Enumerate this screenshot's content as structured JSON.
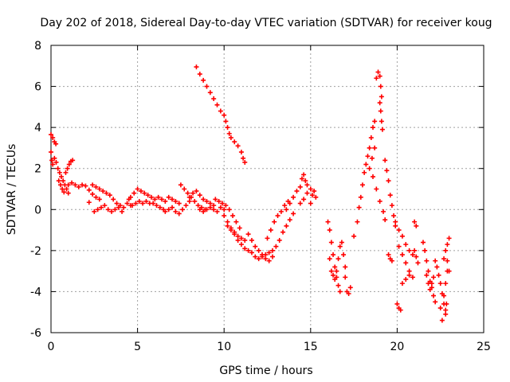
{
  "chart_data": {
    "type": "scatter",
    "title": "Day 202 of 2018, Sidereal Day-to-day VTEC variation (SDTVAR) for receiver koug",
    "xlabel": "GPS time / hours",
    "ylabel": "SDTVAR / TECUs",
    "xlim": [
      0,
      25
    ],
    "ylim": [
      -6,
      8
    ],
    "x_ticks": [
      0,
      5,
      10,
      15,
      20,
      25
    ],
    "y_ticks": [
      -6,
      -4,
      -2,
      0,
      2,
      4,
      6,
      8
    ],
    "grid": true,
    "marker": "+",
    "marker_color": "#ff0000",
    "series": [
      {
        "points": [
          [
            0.0,
            3.65
          ],
          [
            0.1,
            3.5
          ],
          [
            0.2,
            3.3
          ],
          [
            0.28,
            3.2
          ],
          [
            0.0,
            2.8
          ],
          [
            0.05,
            2.4
          ],
          [
            0.1,
            2.2
          ],
          [
            0.2,
            2.5
          ],
          [
            0.3,
            2.3
          ],
          [
            0.4,
            2.0
          ],
          [
            0.5,
            1.8
          ],
          [
            0.6,
            1.6
          ],
          [
            0.7,
            1.4
          ],
          [
            0.8,
            1.2
          ],
          [
            0.9,
            1.0
          ],
          [
            1.0,
            0.8
          ],
          [
            0.45,
            1.4
          ],
          [
            0.55,
            1.2
          ],
          [
            0.65,
            1.0
          ],
          [
            0.75,
            0.85
          ],
          [
            0.85,
            1.8
          ],
          [
            0.95,
            2.0
          ],
          [
            1.05,
            2.2
          ],
          [
            1.15,
            2.35
          ],
          [
            1.25,
            2.4
          ],
          [
            1.0,
            1.2
          ],
          [
            1.2,
            1.3
          ],
          [
            1.4,
            1.2
          ],
          [
            1.6,
            1.1
          ],
          [
            1.8,
            1.2
          ],
          [
            2.0,
            1.15
          ],
          [
            2.2,
            0.95
          ],
          [
            2.4,
            0.75
          ],
          [
            2.6,
            0.6
          ],
          [
            2.8,
            0.5
          ],
          [
            2.2,
            0.35
          ],
          [
            2.4,
            1.2
          ],
          [
            2.6,
            1.1
          ],
          [
            2.8,
            1.0
          ],
          [
            3.0,
            0.9
          ],
          [
            2.5,
            -0.1
          ],
          [
            2.7,
            0.0
          ],
          [
            2.9,
            0.1
          ],
          [
            3.1,
            0.2
          ],
          [
            3.3,
            0.0
          ],
          [
            3.5,
            -0.1
          ],
          [
            3.7,
            0.0
          ],
          [
            3.9,
            0.1
          ],
          [
            4.1,
            -0.1
          ],
          [
            3.2,
            0.8
          ],
          [
            3.4,
            0.7
          ],
          [
            3.6,
            0.5
          ],
          [
            3.8,
            0.3
          ],
          [
            4.0,
            0.2
          ],
          [
            4.2,
            0.1
          ],
          [
            4.4,
            0.3
          ],
          [
            4.5,
            0.5
          ],
          [
            4.6,
            0.2
          ],
          [
            4.6,
            0.6
          ],
          [
            4.8,
            0.8
          ],
          [
            5.0,
            1.0
          ],
          [
            5.2,
            0.9
          ],
          [
            5.4,
            0.8
          ],
          [
            5.6,
            0.7
          ],
          [
            5.8,
            0.6
          ],
          [
            6.0,
            0.5
          ],
          [
            4.7,
            0.2
          ],
          [
            4.9,
            0.3
          ],
          [
            5.1,
            0.4
          ],
          [
            5.3,
            0.3
          ],
          [
            5.5,
            0.4
          ],
          [
            5.7,
            0.3
          ],
          [
            5.9,
            0.3
          ],
          [
            6.1,
            0.2
          ],
          [
            6.3,
            0.1
          ],
          [
            6.5,
            0.0
          ],
          [
            6.2,
            0.6
          ],
          [
            6.4,
            0.5
          ],
          [
            6.6,
            0.4
          ],
          [
            6.8,
            0.6
          ],
          [
            7.0,
            0.5
          ],
          [
            7.2,
            0.4
          ],
          [
            7.4,
            0.3
          ],
          [
            6.6,
            -0.1
          ],
          [
            6.8,
            0.0
          ],
          [
            7.0,
            0.1
          ],
          [
            7.2,
            -0.1
          ],
          [
            7.4,
            -0.2
          ],
          [
            7.6,
            0.0
          ],
          [
            7.8,
            0.2
          ],
          [
            8.0,
            0.4
          ],
          [
            7.5,
            1.2
          ],
          [
            7.7,
            1.0
          ],
          [
            7.9,
            0.8
          ],
          [
            8.1,
            0.6
          ],
          [
            8.3,
            0.4
          ],
          [
            8.5,
            0.2
          ],
          [
            8.7,
            0.1
          ],
          [
            8.9,
            0.0
          ],
          [
            8.0,
            0.6
          ],
          [
            8.2,
            0.8
          ],
          [
            8.4,
            0.9
          ],
          [
            8.6,
            0.7
          ],
          [
            8.8,
            0.5
          ],
          [
            9.0,
            0.4
          ],
          [
            9.2,
            0.3
          ],
          [
            9.4,
            0.2
          ],
          [
            8.6,
            0.0
          ],
          [
            8.8,
            -0.1
          ],
          [
            9.0,
            0.0
          ],
          [
            9.2,
            0.1
          ],
          [
            9.4,
            0.0
          ],
          [
            9.6,
            -0.1
          ],
          [
            9.8,
            0.1
          ],
          [
            10.0,
            0.0
          ],
          [
            9.5,
            0.5
          ],
          [
            9.7,
            0.4
          ],
          [
            9.9,
            0.3
          ],
          [
            10.1,
            0.2
          ],
          [
            10.3,
            0.0
          ],
          [
            10.5,
            -0.3
          ],
          [
            10.7,
            -0.6
          ],
          [
            10.9,
            -0.9
          ],
          [
            10.0,
            -0.3
          ],
          [
            10.2,
            -0.6
          ],
          [
            10.4,
            -0.9
          ],
          [
            10.6,
            -1.1
          ],
          [
            10.8,
            -1.3
          ],
          [
            11.0,
            -1.4
          ],
          [
            11.2,
            -1.5
          ],
          [
            10.2,
            -0.8
          ],
          [
            10.4,
            -1.0
          ],
          [
            10.6,
            -1.2
          ],
          [
            10.8,
            -1.5
          ],
          [
            11.0,
            -1.7
          ],
          [
            11.2,
            -1.9
          ],
          [
            11.4,
            -2.0
          ],
          [
            11.4,
            -1.2
          ],
          [
            11.6,
            -1.5
          ],
          [
            11.8,
            -1.8
          ],
          [
            12.0,
            -2.0
          ],
          [
            12.2,
            -2.2
          ],
          [
            12.4,
            -2.4
          ],
          [
            12.6,
            -2.5
          ],
          [
            11.6,
            -2.1
          ],
          [
            11.8,
            -2.3
          ],
          [
            12.0,
            -2.4
          ],
          [
            12.2,
            -2.3
          ],
          [
            12.4,
            -2.2
          ],
          [
            12.6,
            -2.1
          ],
          [
            12.8,
            -2.3
          ],
          [
            12.5,
            -1.4
          ],
          [
            12.7,
            -1.0
          ],
          [
            12.9,
            -0.6
          ],
          [
            13.1,
            -0.3
          ],
          [
            13.3,
            -0.1
          ],
          [
            13.5,
            0.2
          ],
          [
            13.7,
            0.4
          ],
          [
            12.8,
            -2.0
          ],
          [
            13.0,
            -1.8
          ],
          [
            13.2,
            -1.5
          ],
          [
            13.4,
            -1.1
          ],
          [
            13.6,
            -0.8
          ],
          [
            13.8,
            -0.5
          ],
          [
            14.0,
            -0.2
          ],
          [
            13.6,
            0.0
          ],
          [
            13.8,
            0.3
          ],
          [
            14.0,
            0.6
          ],
          [
            14.2,
            0.9
          ],
          [
            14.4,
            1.1
          ],
          [
            14.5,
            1.5
          ],
          [
            14.6,
            1.7
          ],
          [
            14.7,
            1.4
          ],
          [
            14.8,
            1.2
          ],
          [
            14.4,
            0.3
          ],
          [
            14.6,
            0.5
          ],
          [
            14.8,
            0.8
          ],
          [
            15.0,
            1.0
          ],
          [
            15.1,
            0.7
          ],
          [
            15.2,
            0.9
          ],
          [
            15.3,
            0.6
          ],
          [
            15.0,
            0.3
          ],
          [
            8.4,
            6.95
          ],
          [
            8.6,
            6.6
          ],
          [
            8.8,
            6.3
          ],
          [
            9.0,
            6.0
          ],
          [
            9.2,
            5.7
          ],
          [
            9.4,
            5.4
          ],
          [
            9.6,
            5.1
          ],
          [
            9.8,
            4.8
          ],
          [
            10.0,
            4.6
          ],
          [
            10.1,
            4.3
          ],
          [
            10.2,
            4.0
          ],
          [
            10.3,
            3.7
          ],
          [
            10.4,
            3.5
          ],
          [
            10.6,
            3.3
          ],
          [
            10.8,
            3.1
          ],
          [
            11.0,
            2.8
          ],
          [
            11.1,
            2.5
          ],
          [
            11.2,
            2.3
          ],
          [
            16.0,
            -0.6
          ],
          [
            16.1,
            -1.0
          ],
          [
            16.2,
            -1.6
          ],
          [
            16.3,
            -2.2
          ],
          [
            16.4,
            -2.8
          ],
          [
            16.5,
            -3.3
          ],
          [
            16.6,
            -3.7
          ],
          [
            16.7,
            -4.0
          ],
          [
            16.1,
            -2.4
          ],
          [
            16.2,
            -3.0
          ],
          [
            16.3,
            -3.2
          ],
          [
            16.4,
            -3.4
          ],
          [
            16.5,
            -3.0
          ],
          [
            16.6,
            -2.4
          ],
          [
            16.7,
            -1.8
          ],
          [
            16.8,
            -1.6
          ],
          [
            16.9,
            -2.2
          ],
          [
            17.0,
            -2.8
          ],
          [
            17.0,
            -3.3
          ],
          [
            17.1,
            -4.0
          ],
          [
            17.2,
            -4.1
          ],
          [
            17.3,
            -3.8
          ],
          [
            17.5,
            -1.3
          ],
          [
            17.7,
            -0.6
          ],
          [
            17.8,
            0.1
          ],
          [
            17.9,
            0.6
          ],
          [
            18.0,
            1.2
          ],
          [
            18.1,
            1.8
          ],
          [
            18.2,
            2.2
          ],
          [
            18.3,
            2.6
          ],
          [
            18.4,
            3.0
          ],
          [
            18.5,
            3.5
          ],
          [
            18.6,
            4.0
          ],
          [
            18.7,
            4.3
          ],
          [
            18.4,
            2.0
          ],
          [
            18.55,
            2.5
          ],
          [
            18.7,
            3.0
          ],
          [
            18.8,
            6.4
          ],
          [
            18.9,
            6.7
          ],
          [
            19.0,
            6.5
          ],
          [
            19.05,
            6.0
          ],
          [
            19.1,
            5.5
          ],
          [
            19.0,
            5.2
          ],
          [
            19.05,
            4.8
          ],
          [
            19.1,
            4.3
          ],
          [
            19.15,
            3.9
          ],
          [
            18.6,
            1.6
          ],
          [
            18.8,
            1.0
          ],
          [
            19.0,
            0.4
          ],
          [
            19.2,
            -0.1
          ],
          [
            19.3,
            -0.5
          ],
          [
            19.3,
            2.4
          ],
          [
            19.4,
            1.9
          ],
          [
            19.5,
            1.4
          ],
          [
            19.6,
            0.7
          ],
          [
            19.7,
            0.2
          ],
          [
            19.8,
            -0.3
          ],
          [
            19.9,
            -0.8
          ],
          [
            19.5,
            -2.2
          ],
          [
            19.6,
            -2.4
          ],
          [
            19.7,
            -2.5
          ],
          [
            19.9,
            -0.6
          ],
          [
            20.1,
            -1.0
          ],
          [
            20.3,
            -1.3
          ],
          [
            20.5,
            -1.7
          ],
          [
            20.7,
            -2.0
          ],
          [
            20.9,
            -2.2
          ],
          [
            20.1,
            -1.8
          ],
          [
            20.3,
            -2.2
          ],
          [
            20.5,
            -2.6
          ],
          [
            20.7,
            -3.0
          ],
          [
            20.9,
            -3.3
          ],
          [
            20.3,
            -3.6
          ],
          [
            20.5,
            -3.4
          ],
          [
            20.7,
            -3.2
          ],
          [
            20.0,
            -4.6
          ],
          [
            20.1,
            -4.8
          ],
          [
            20.2,
            -4.9
          ],
          [
            21.0,
            -0.6
          ],
          [
            21.1,
            -0.8
          ],
          [
            21.0,
            -2.0
          ],
          [
            21.1,
            -2.3
          ],
          [
            21.2,
            -2.6
          ],
          [
            21.5,
            -1.6
          ],
          [
            21.6,
            -2.0
          ],
          [
            21.7,
            -2.5
          ],
          [
            21.8,
            -3.0
          ],
          [
            21.9,
            -3.5
          ],
          [
            22.0,
            -3.8
          ],
          [
            22.1,
            -4.2
          ],
          [
            22.2,
            -4.5
          ],
          [
            21.7,
            -3.2
          ],
          [
            21.8,
            -3.6
          ],
          [
            21.9,
            -3.9
          ],
          [
            22.0,
            -3.6
          ],
          [
            22.1,
            -3.3
          ],
          [
            22.2,
            -2.5
          ],
          [
            22.3,
            -2.8
          ],
          [
            22.4,
            -3.2
          ],
          [
            22.5,
            -3.6
          ],
          [
            22.6,
            -4.1
          ],
          [
            22.7,
            -4.6
          ],
          [
            22.8,
            -5.1
          ],
          [
            22.6,
            -5.4
          ],
          [
            22.5,
            -4.8
          ],
          [
            22.7,
            -4.2
          ],
          [
            22.8,
            -3.6
          ],
          [
            22.9,
            -3.0
          ],
          [
            22.7,
            -2.4
          ],
          [
            22.8,
            -2.0
          ],
          [
            22.9,
            -1.7
          ],
          [
            23.0,
            -1.4
          ],
          [
            22.9,
            -2.5
          ],
          [
            23.0,
            -3.0
          ],
          [
            22.85,
            -4.6
          ],
          [
            22.8,
            -4.9
          ]
        ]
      }
    ]
  }
}
